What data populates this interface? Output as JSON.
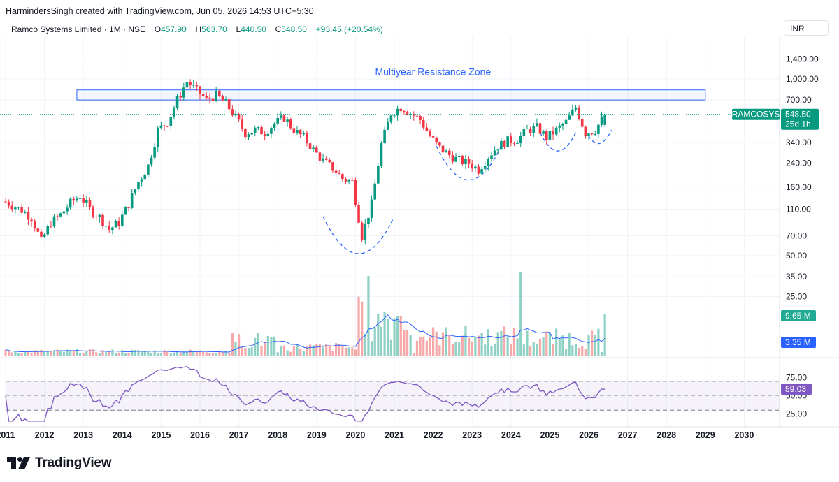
{
  "header": {
    "creator": "HarmindersSingh created with TradingView.com, Jun 05, 2026 14:53 UTC+5:30"
  },
  "legend": {
    "symbol_line": "Ramco Systems Limited · 1M · NSE",
    "o_label": "O",
    "o_value": "457.90",
    "h_label": "H",
    "h_value": "563.70",
    "l_label": "L",
    "l_value": "440.50",
    "c_label": "C",
    "c_value": "548.50",
    "change": "+93.45 (+20.54%)"
  },
  "currency": "INR",
  "colors": {
    "up": "#089981",
    "down": "#f23645",
    "accent": "#2962ff",
    "rsi": "#7e57c2",
    "volume_ma": "#2962ff"
  },
  "chart_data": {
    "type": "candlestick",
    "symbol": "Ramco Systems Limited",
    "interval": "1M",
    "exchange": "NSE",
    "price_axis": {
      "scale": "log",
      "ticks": [
        "1,400.00",
        "1,000.00",
        "700.00",
        "340.00",
        "240.00",
        "160.00",
        "110.00",
        "70.00",
        "50.00",
        "35.00",
        "25.00"
      ]
    },
    "x_axis": {
      "ticks": [
        "2011",
        "2012",
        "2013",
        "2014",
        "2015",
        "2016",
        "2017",
        "2018",
        "2019",
        "2020",
        "2021",
        "2022",
        "2023",
        "2024",
        "2025",
        "2026",
        "2027",
        "2028",
        "2029",
        "2030"
      ]
    },
    "last_price": {
      "symbol_tag": "RAMCOSYS",
      "price": "548.50",
      "countdown": "25d 1h"
    },
    "volume": {
      "last": "9.65 M",
      "ma": "3.35 M"
    },
    "rsi": {
      "ticks": [
        "75.00",
        "50.00",
        "25.00"
      ],
      "last": "59.03",
      "upper_band": 70,
      "lower_band": 30
    },
    "annotations": [
      {
        "type": "rectangle",
        "label": "Multiyear Resistance Zone",
        "price_range": [
          700,
          830
        ],
        "time_range": [
          "2012-11",
          "2029-01"
        ]
      },
      {
        "type": "arc",
        "style": "dashed",
        "time_range": [
          "2019-03",
          "2021-01"
        ],
        "bottom": 50
      },
      {
        "type": "arc",
        "style": "dashed",
        "time_range": [
          "2022-02",
          "2023-10"
        ],
        "bottom": 175
      },
      {
        "type": "arc",
        "style": "dashed",
        "time_range": [
          "2024-10",
          "2025-09"
        ],
        "bottom": 290
      },
      {
        "type": "arc",
        "style": "dashed",
        "time_range": [
          "2025-12",
          "2026-08"
        ],
        "bottom": 330
      }
    ],
    "monthly_closes": [
      {
        "date": "2011-01",
        "close": 125
      },
      {
        "date": "2011-03",
        "close": 118
      },
      {
        "date": "2011-06",
        "close": 108
      },
      {
        "date": "2011-09",
        "close": 95
      },
      {
        "date": "2011-12",
        "close": 64
      },
      {
        "date": "2012-03",
        "close": 88
      },
      {
        "date": "2012-06",
        "close": 100
      },
      {
        "date": "2012-09",
        "close": 122
      },
      {
        "date": "2012-12",
        "close": 138
      },
      {
        "date": "2013-03",
        "close": 110
      },
      {
        "date": "2013-06",
        "close": 96
      },
      {
        "date": "2013-09",
        "close": 78
      },
      {
        "date": "2013-12",
        "close": 88
      },
      {
        "date": "2014-03",
        "close": 120
      },
      {
        "date": "2014-06",
        "close": 175
      },
      {
        "date": "2014-09",
        "close": 230
      },
      {
        "date": "2014-12",
        "close": 420
      },
      {
        "date": "2015-03",
        "close": 480
      },
      {
        "date": "2015-06",
        "close": 700
      },
      {
        "date": "2015-09",
        "close": 960
      },
      {
        "date": "2015-12",
        "close": 820
      },
      {
        "date": "2016-03",
        "close": 700
      },
      {
        "date": "2016-06",
        "close": 760
      },
      {
        "date": "2016-09",
        "close": 660
      },
      {
        "date": "2016-12",
        "close": 520
      },
      {
        "date": "2017-03",
        "close": 400
      },
      {
        "date": "2017-06",
        "close": 420
      },
      {
        "date": "2017-09",
        "close": 405
      },
      {
        "date": "2017-12",
        "close": 470
      },
      {
        "date": "2018-03",
        "close": 520
      },
      {
        "date": "2018-06",
        "close": 420
      },
      {
        "date": "2018-09",
        "close": 370
      },
      {
        "date": "2018-12",
        "close": 300
      },
      {
        "date": "2019-03",
        "close": 250
      },
      {
        "date": "2019-06",
        "close": 220
      },
      {
        "date": "2019-09",
        "close": 185
      },
      {
        "date": "2019-12",
        "close": 175
      },
      {
        "date": "2020-03",
        "close": 70
      },
      {
        "date": "2020-06",
        "close": 120
      },
      {
        "date": "2020-09",
        "close": 330
      },
      {
        "date": "2020-12",
        "close": 560
      },
      {
        "date": "2021-03",
        "close": 620
      },
      {
        "date": "2021-06",
        "close": 560
      },
      {
        "date": "2021-09",
        "close": 500
      },
      {
        "date": "2021-12",
        "close": 380
      },
      {
        "date": "2022-03",
        "close": 310
      },
      {
        "date": "2022-06",
        "close": 275
      },
      {
        "date": "2022-09",
        "close": 250
      },
      {
        "date": "2022-12",
        "close": 240
      },
      {
        "date": "2023-03",
        "close": 215
      },
      {
        "date": "2023-06",
        "close": 270
      },
      {
        "date": "2023-09",
        "close": 320
      },
      {
        "date": "2023-12",
        "close": 350
      },
      {
        "date": "2024-03",
        "close": 360
      },
      {
        "date": "2024-06",
        "close": 420
      },
      {
        "date": "2024-09",
        "close": 440
      },
      {
        "date": "2024-12",
        "close": 370
      },
      {
        "date": "2025-03",
        "close": 420
      },
      {
        "date": "2025-06",
        "close": 480
      },
      {
        "date": "2025-09",
        "close": 620
      },
      {
        "date": "2025-12",
        "close": 400
      },
      {
        "date": "2026-03",
        "close": 420
      },
      {
        "date": "2026-06",
        "close": 548.5
      }
    ]
  }
}
